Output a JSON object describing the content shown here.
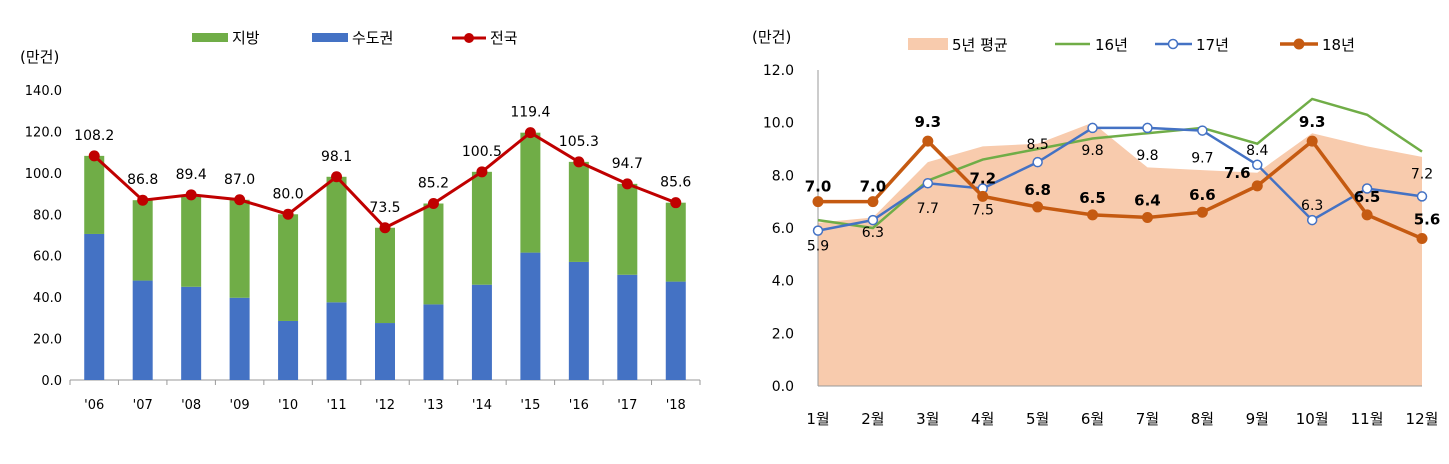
{
  "chart_data": [
    {
      "type": "bar",
      "stacked": true,
      "unit_label": "(만건)",
      "categories": [
        "'06",
        "'07",
        "'08",
        "'09",
        "'10",
        "'11",
        "'12",
        "'13",
        "'14",
        "'15",
        "'16",
        "'17",
        "'18"
      ],
      "y_ticks": [
        "0.0",
        "20.0",
        "40.0",
        "60.0",
        "80.0",
        "100.0",
        "120.0",
        "140.0"
      ],
      "ylim": [
        0,
        140
      ],
      "legend": {
        "position": "top-center",
        "items": [
          "지방",
          "수도권",
          "전국"
        ]
      },
      "series": [
        {
          "name": "수도권",
          "kind": "bar",
          "color": "#4472C4",
          "values": [
            70.5,
            48.0,
            45.0,
            39.7,
            28.5,
            37.5,
            27.5,
            36.5,
            46.0,
            61.5,
            57.0,
            50.8,
            47.5
          ]
        },
        {
          "name": "지방",
          "kind": "bar",
          "color": "#70AD47",
          "values": [
            37.7,
            38.8,
            44.4,
            47.3,
            51.5,
            60.6,
            46.0,
            48.7,
            54.5,
            57.9,
            48.3,
            43.9,
            38.1
          ]
        },
        {
          "name": "전국",
          "kind": "line",
          "color": "#C00000",
          "values": [
            108.2,
            86.8,
            89.4,
            87.0,
            80.0,
            98.1,
            73.5,
            85.2,
            100.5,
            119.4,
            105.3,
            94.7,
            85.6
          ],
          "labels": [
            "108.2",
            "86.8",
            "89.4",
            "87.0",
            "80.0",
            "98.1",
            "73.5",
            "85.2",
            "100.5",
            "119.4",
            "105.3",
            "94.7",
            "85.6"
          ]
        }
      ]
    },
    {
      "type": "line",
      "unit_label": "(만건)",
      "categories": [
        "1월",
        "2월",
        "3월",
        "4월",
        "5월",
        "6월",
        "7월",
        "8월",
        "9월",
        "10월",
        "11월",
        "12월"
      ],
      "y_ticks": [
        "0.0",
        "2.0",
        "4.0",
        "6.0",
        "8.0",
        "10.0",
        "12.0"
      ],
      "ylim": [
        0,
        12
      ],
      "legend": {
        "position": "top-center",
        "items": [
          "5년 평균",
          "16년",
          "17년",
          "18년"
        ]
      },
      "series": [
        {
          "name": "5년 평균",
          "kind": "area",
          "color": "#F8CBAD",
          "values": [
            6.2,
            6.4,
            8.5,
            9.1,
            9.2,
            10.0,
            8.3,
            8.2,
            8.1,
            9.6,
            9.1,
            8.7
          ]
        },
        {
          "name": "16년",
          "kind": "line",
          "color": "#70AD47",
          "values": [
            6.3,
            6.0,
            7.8,
            8.6,
            9.0,
            9.4,
            9.6,
            9.8,
            9.2,
            10.9,
            10.3,
            8.9
          ]
        },
        {
          "name": "17년",
          "kind": "line",
          "color": "#4472C4",
          "marker": "hollow-circle",
          "values": [
            5.9,
            6.3,
            7.7,
            7.5,
            8.5,
            9.8,
            9.8,
            9.7,
            8.4,
            6.3,
            7.5,
            7.2
          ],
          "labels": [
            "5.9",
            "6.3",
            "7.7",
            "7.5",
            "8.5",
            "9.8",
            "9.8",
            "9.7",
            "8.4",
            "6.3",
            "",
            "7.2"
          ]
        },
        {
          "name": "18년",
          "kind": "line",
          "color": "#C55A11",
          "marker": "filled-circle",
          "values": [
            7.0,
            7.0,
            9.3,
            7.2,
            6.8,
            6.5,
            6.4,
            6.6,
            7.6,
            9.3,
            6.5,
            5.6
          ],
          "labels": [
            "7.0",
            "7.0",
            "9.3",
            "7.2",
            "6.8",
            "6.5",
            "6.4",
            "6.6",
            "7.6",
            "9.3",
            "6.5",
            "5.6"
          ]
        }
      ]
    }
  ]
}
